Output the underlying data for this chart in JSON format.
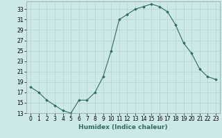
{
  "x": [
    0,
    1,
    2,
    3,
    4,
    5,
    6,
    7,
    8,
    9,
    10,
    11,
    12,
    13,
    14,
    15,
    16,
    17,
    18,
    19,
    20,
    21,
    22,
    23
  ],
  "y": [
    18,
    17,
    15.5,
    14.5,
    13.5,
    13,
    15.5,
    15.5,
    17,
    20,
    25,
    31,
    32,
    33,
    33.5,
    34,
    33.5,
    32.5,
    30,
    26.5,
    24.5,
    21.5,
    20,
    19.5
  ],
  "xlim": [
    -0.5,
    23.5
  ],
  "ylim_min": 13,
  "ylim_max": 34,
  "yticks": [
    13,
    15,
    17,
    19,
    21,
    23,
    25,
    27,
    29,
    31,
    33
  ],
  "xticks": [
    0,
    1,
    2,
    3,
    4,
    5,
    6,
    7,
    8,
    9,
    10,
    11,
    12,
    13,
    14,
    15,
    16,
    17,
    18,
    19,
    20,
    21,
    22,
    23
  ],
  "xlabel": "Humidex (Indice chaleur)",
  "line_color": "#2e6b5e",
  "marker": "D",
  "marker_size": 1.8,
  "bg_color": "#cce8e8",
  "grid_color": "#b8d4d4",
  "tick_fontsize": 5.5,
  "xlabel_fontsize": 6.5
}
